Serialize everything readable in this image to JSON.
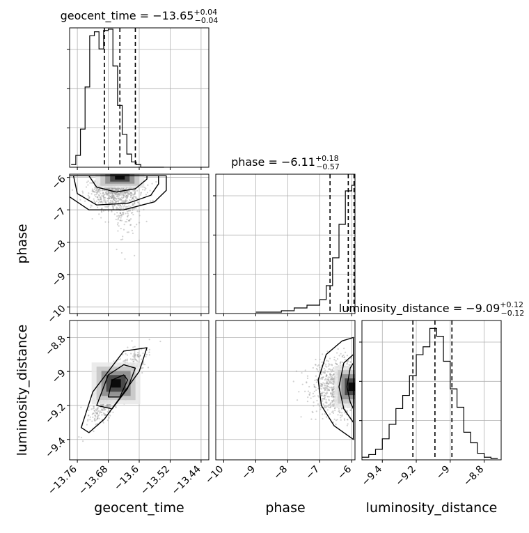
{
  "chart_data": [
    {
      "type": "histogram",
      "panel": "1d",
      "parameter": "geocent_time",
      "title": {
        "base": "geocent_time = −13.65",
        "sup": "+0.04",
        "sub": "−0.04"
      },
      "xlim": [
        -13.78,
        -13.42
      ],
      "x_ticks": [
        -13.76,
        -13.68,
        -13.6,
        -13.52,
        -13.44
      ],
      "bins": [
        -13.776,
        -13.764,
        -13.752,
        -13.74,
        -13.728,
        -13.716,
        -13.704,
        -13.692,
        -13.68,
        -13.668,
        -13.656,
        -13.644,
        -13.632,
        -13.62,
        -13.608,
        -13.596,
        -13.584,
        -13.572,
        -13.56,
        -13.548,
        -13.536
      ],
      "counts": [
        0.02,
        0.09,
        0.29,
        0.61,
        1.0,
        1.03,
        0.9,
        1.04,
        1.05,
        0.77,
        0.47,
        0.25,
        0.1,
        0.04,
        0.02,
        0.0,
        0.0,
        0.0,
        0.0,
        0.0
      ],
      "quantile_lines": [
        -13.69,
        -13.65,
        -13.61
      ],
      "ylim": [
        0,
        1.06
      ],
      "grid": true
    },
    {
      "type": "histogram",
      "panel": "1d",
      "parameter": "phase",
      "title": {
        "base": "phase = −6.11",
        "sup": "+0.18",
        "sub": "−0.57"
      },
      "xlim": [
        -10.25,
        -5.9
      ],
      "x_ticks": [
        -10,
        -9,
        -8,
        -7,
        -6
      ],
      "bins": [
        -9.0,
        -8.6,
        -8.2,
        -7.8,
        -7.4,
        -7.0,
        -6.8,
        -6.6,
        -6.4,
        -6.2,
        -6.0,
        -5.9
      ],
      "counts": [
        0.01,
        0.01,
        0.02,
        0.04,
        0.06,
        0.1,
        0.2,
        0.4,
        0.64,
        0.88,
        0.92
      ],
      "quantile_lines": [
        -6.68,
        -6.11,
        -5.93
      ],
      "ylim": [
        0,
        1.0
      ],
      "grid": true
    },
    {
      "type": "histogram",
      "panel": "1d",
      "parameter": "luminosity_distance",
      "title": {
        "base": "luminosity_distance = −9.09",
        "sup": "+0.12",
        "sub": "−0.12"
      },
      "xlim": [
        -9.52,
        -8.7
      ],
      "x_ticks": [
        -9.4,
        -9.2,
        -9.0,
        -8.8
      ],
      "bins": [
        -9.52,
        -9.48,
        -9.44,
        -9.4,
        -9.36,
        -9.32,
        -9.28,
        -9.24,
        -9.2,
        -9.16,
        -9.12,
        -9.08,
        -9.04,
        -9.0,
        -8.96,
        -8.92,
        -8.88,
        -8.84,
        -8.8,
        -8.76,
        -8.72
      ],
      "counts": [
        0.02,
        0.04,
        0.08,
        0.16,
        0.27,
        0.39,
        0.49,
        0.64,
        0.8,
        0.86,
        1.0,
        0.94,
        0.75,
        0.54,
        0.4,
        0.21,
        0.13,
        0.05,
        0.02,
        0.01
      ],
      "quantile_lines": [
        -9.22,
        -9.09,
        -8.99
      ],
      "ylim": [
        0,
        1.06
      ],
      "grid": true
    },
    {
      "type": "scatter_density",
      "panel": "2d",
      "x_param": "geocent_time",
      "y_param": "phase",
      "ylabel": "phase",
      "xlim": [
        -13.78,
        -13.42
      ],
      "ylim": [
        -10.2,
        -5.9
      ],
      "y_ticks": [
        -6,
        -7,
        -8,
        -9,
        -10
      ],
      "density_peak": {
        "x": -13.65,
        "y": -6.0
      },
      "contours": [
        [
          [
            -13.73,
            -5.95
          ],
          [
            -13.71,
            -6.3
          ],
          [
            -13.66,
            -6.45
          ],
          [
            -13.61,
            -6.35
          ],
          [
            -13.58,
            -6.05
          ],
          [
            -13.58,
            -5.95
          ]
        ],
        [
          [
            -13.77,
            -5.95
          ],
          [
            -13.76,
            -6.5
          ],
          [
            -13.71,
            -6.85
          ],
          [
            -13.63,
            -6.8
          ],
          [
            -13.57,
            -6.55
          ],
          [
            -13.55,
            -6.2
          ],
          [
            -13.55,
            -5.95
          ]
        ],
        [
          [
            -13.79,
            -5.95
          ],
          [
            -13.78,
            -6.6
          ],
          [
            -13.73,
            -7.0
          ],
          [
            -13.64,
            -7.0
          ],
          [
            -13.56,
            -6.75
          ],
          [
            -13.53,
            -6.4
          ],
          [
            -13.53,
            -5.95
          ]
        ]
      ],
      "cloud": {
        "center_x": -13.66,
        "center_y": -6.7,
        "count": 900
      },
      "grid": true
    },
    {
      "type": "scatter_density",
      "panel": "2d",
      "x_param": "geocent_time",
      "y_param": "luminosity_distance",
      "xlabel": "geocent_time",
      "ylabel": "luminosity_distance",
      "xlim": [
        -13.78,
        -13.42
      ],
      "ylim": [
        -9.52,
        -8.7
      ],
      "x_ticks": [
        -13.76,
        -13.68,
        -13.6,
        -13.52,
        -13.44
      ],
      "y_ticks": [
        -8.8,
        -9.0,
        -9.2,
        -9.4
      ],
      "density_peak": {
        "x": -13.66,
        "y": -9.07
      },
      "contours": [
        [
          [
            -13.68,
            -9.15
          ],
          [
            -13.67,
            -9.05
          ],
          [
            -13.64,
            -9.02
          ],
          [
            -13.63,
            -9.05
          ],
          [
            -13.65,
            -9.15
          ]
        ],
        [
          [
            -13.71,
            -9.2
          ],
          [
            -13.68,
            -9.02
          ],
          [
            -13.64,
            -8.96
          ],
          [
            -13.61,
            -8.98
          ],
          [
            -13.63,
            -9.1
          ],
          [
            -13.67,
            -9.22
          ]
        ],
        [
          [
            -13.75,
            -9.33
          ],
          [
            -13.72,
            -9.12
          ],
          [
            -13.64,
            -8.88
          ],
          [
            -13.58,
            -8.86
          ],
          [
            -13.6,
            -9.0
          ],
          [
            -13.69,
            -9.28
          ],
          [
            -13.73,
            -9.36
          ]
        ]
      ],
      "cloud": {
        "center_x": -13.66,
        "center_y": -9.09,
        "count": 900
      },
      "grid": true
    },
    {
      "type": "scatter_density",
      "panel": "2d",
      "x_param": "phase",
      "y_param": "luminosity_distance",
      "xlabel": "phase",
      "xlim": [
        -10.25,
        -5.9
      ],
      "ylim": [
        -9.52,
        -8.7
      ],
      "x_ticks": [
        -10,
        -9,
        -8,
        -7,
        -6
      ],
      "density_peak": {
        "x": -6.0,
        "y": -9.09
      },
      "contours": [
        [
          [
            -5.95,
            -9.22
          ],
          [
            -6.05,
            -9.18
          ],
          [
            -6.15,
            -9.09
          ],
          [
            -6.05,
            -8.98
          ],
          [
            -5.95,
            -8.95
          ]
        ],
        [
          [
            -5.95,
            -9.3
          ],
          [
            -6.25,
            -9.22
          ],
          [
            -6.4,
            -9.09
          ],
          [
            -6.25,
            -8.95
          ],
          [
            -5.95,
            -8.9
          ]
        ],
        [
          [
            -5.95,
            -9.4
          ],
          [
            -6.55,
            -9.32
          ],
          [
            -6.95,
            -9.2
          ],
          [
            -7.05,
            -9.05
          ],
          [
            -6.8,
            -8.9
          ],
          [
            -6.3,
            -8.82
          ],
          [
            -5.95,
            -8.8
          ]
        ]
      ],
      "cloud": {
        "center_x": -6.3,
        "center_y": -9.09,
        "count": 1000
      },
      "grid": true
    }
  ]
}
